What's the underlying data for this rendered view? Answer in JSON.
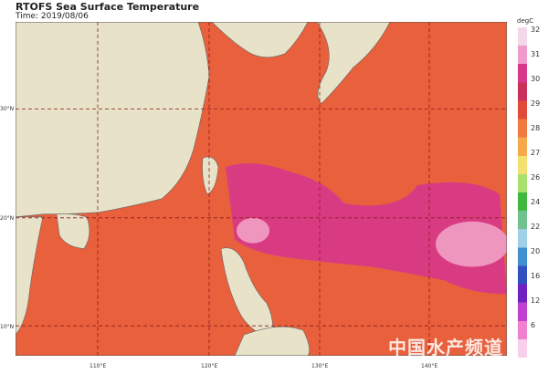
{
  "title": "RTOFS Sea Surface Temperature",
  "time": "Time: 2019/08/06",
  "map": {
    "lon_labels": [
      "110°E",
      "120°E",
      "130°E",
      "140°E"
    ],
    "lat_labels": [
      "30°N",
      "20°N",
      "10°N"
    ],
    "colors": {
      "sea_warm": "#e8603c",
      "sea_hot": "#d8388a",
      "land": "#e8e2c8",
      "grid": "#8b1a1a"
    }
  },
  "colorbar": {
    "unit": "degC",
    "ticks": [
      "32",
      "31",
      "30",
      "29",
      "28",
      "27",
      "26",
      "24",
      "22",
      "20",
      "16",
      "12",
      "6"
    ],
    "colors": [
      "#f4d8ea",
      "#ef9ccc",
      "#d8388a",
      "#c8325a",
      "#e04a3a",
      "#f07a40",
      "#f5a94a",
      "#f4e070",
      "#a8e070",
      "#40b840",
      "#70c090",
      "#a0d0e8",
      "#4090d0",
      "#3050c0",
      "#7020c0",
      "#c040d0",
      "#f080d0",
      "#f8d0ec"
    ]
  },
  "watermark": "中国水产频道"
}
